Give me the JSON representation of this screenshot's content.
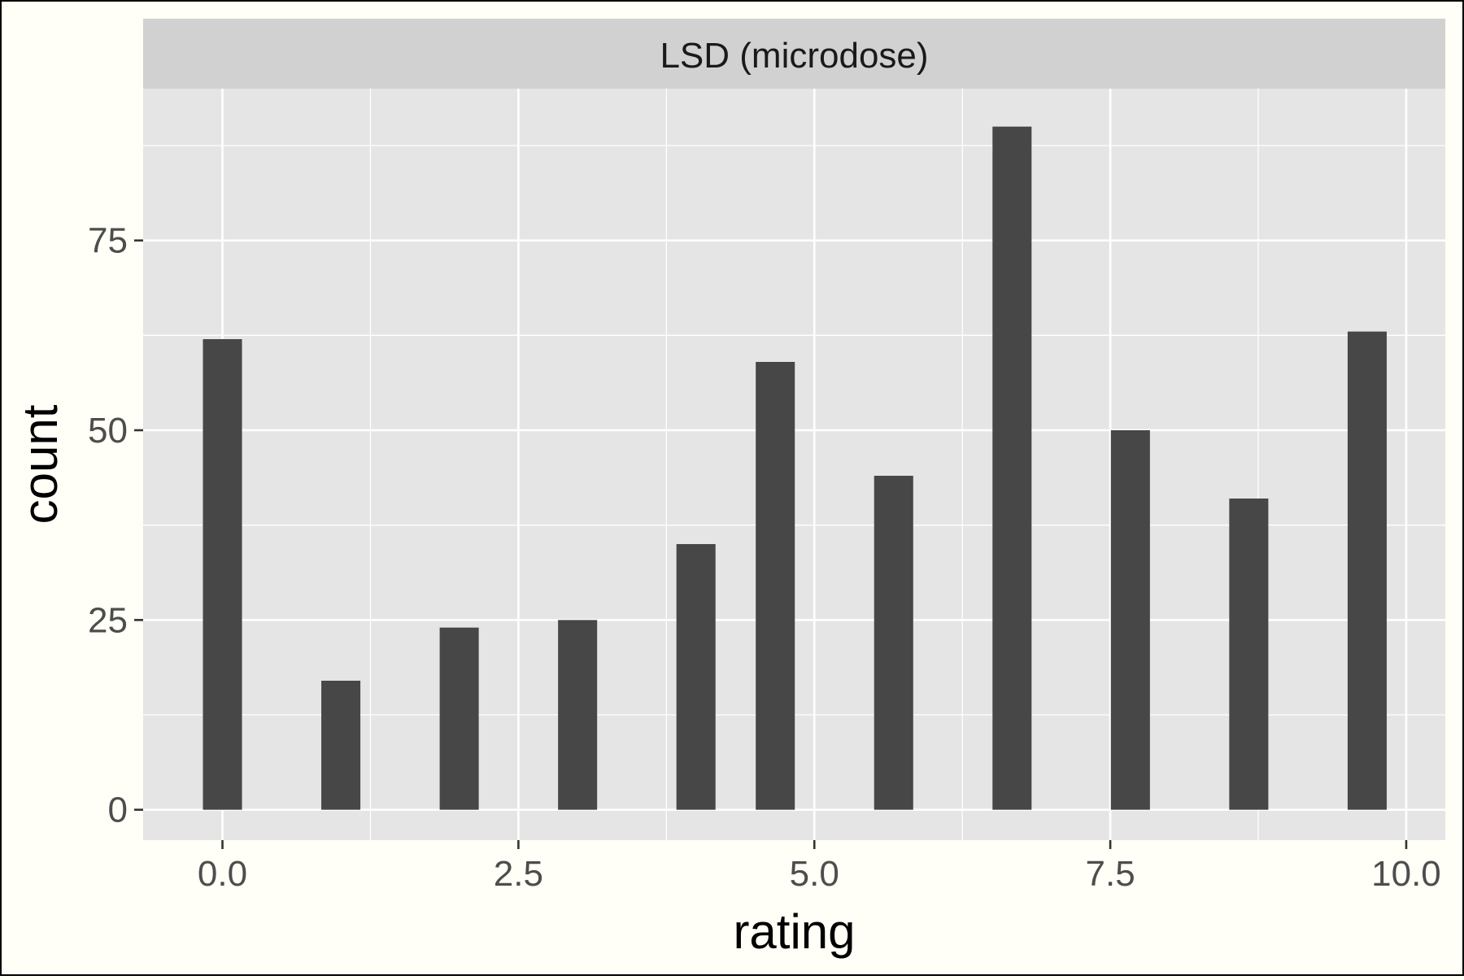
{
  "chart_data": {
    "type": "bar",
    "facet_label": "LSD (microdose)",
    "xlabel": "rating",
    "ylabel": "count",
    "x": [
      0,
      1,
      2,
      3,
      4,
      4.67,
      5.67,
      6.67,
      7.67,
      8.67,
      9.67
    ],
    "values": [
      62,
      17,
      24,
      25,
      35,
      59,
      44,
      90,
      50,
      41,
      63
    ],
    "bar_width": 0.33,
    "xlim": [
      -0.67,
      10.33
    ],
    "ylim": [
      -4,
      95
    ],
    "x_ticks": [
      0,
      2.5,
      5,
      7.5,
      10
    ],
    "x_tick_labels": [
      "0.0",
      "2.5",
      "5.0",
      "7.5",
      "10.0"
    ],
    "y_ticks": [
      0,
      25,
      50,
      75
    ],
    "y_tick_labels": [
      "0",
      "25",
      "50",
      "75"
    ],
    "grid": true,
    "colors": {
      "bar": "#474747",
      "panel": "#e5e5e5",
      "strip": "#d1d1d1",
      "grid": "#ffffff",
      "background": "#fffff7"
    }
  }
}
